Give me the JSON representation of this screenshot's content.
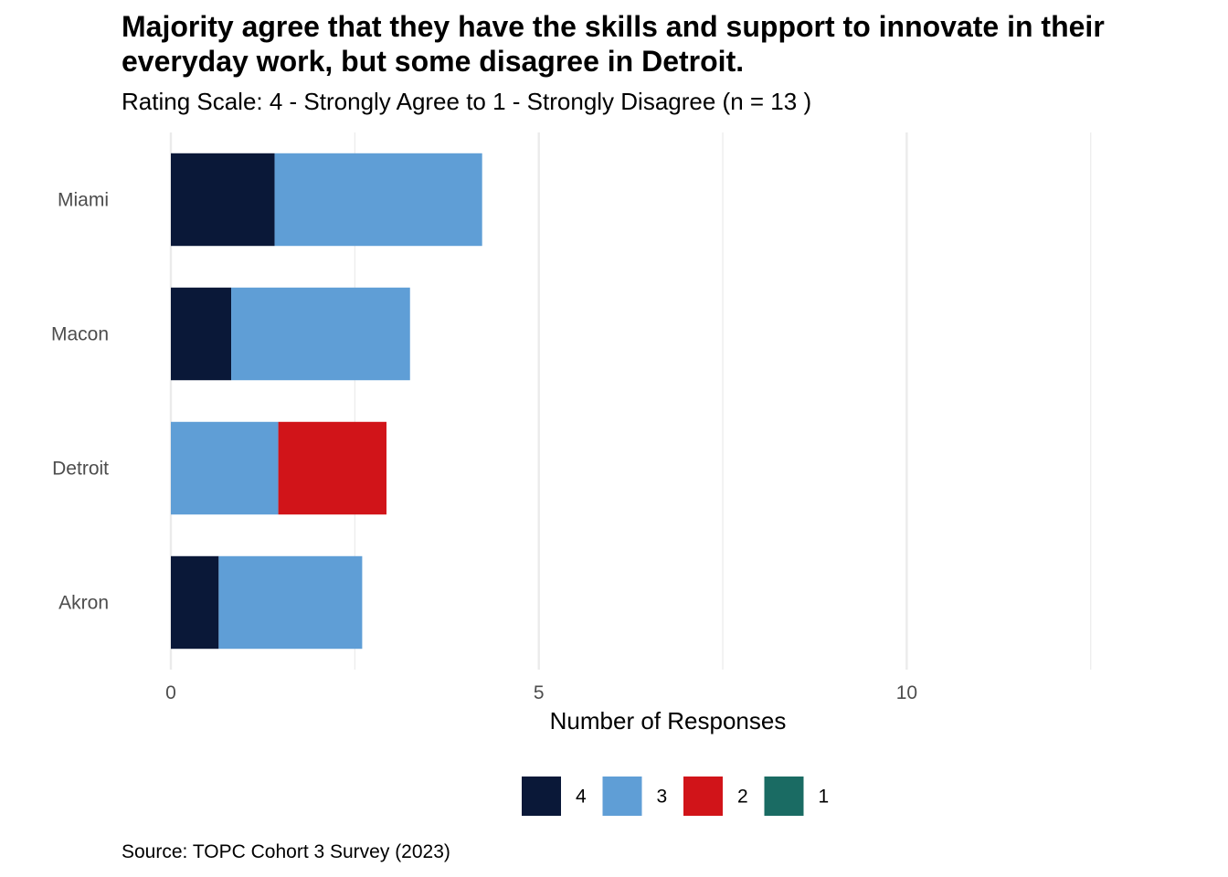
{
  "chart_data": {
    "type": "bar",
    "orientation": "horizontal",
    "stacked": true,
    "title": "Majority agree that they have the skills and support to innovate in their everyday work, but some disagree in Detroit.",
    "subtitle": "Rating Scale: 4 - Strongly Agree to 1 - Strongly Disagree (n = 13 )",
    "caption": "Source: TOPC Cohort 3 Survey (2023)",
    "xlabel": "Number of Responses",
    "ylabel": "",
    "xlim": [
      0,
      13
    ],
    "x_ticks": [
      0,
      5,
      10
    ],
    "grid": true,
    "legend_position": "bottom",
    "categories": [
      "Miami",
      "Macon",
      "Detroit",
      "Akron"
    ],
    "series": [
      {
        "name": "4",
        "color": "#0a1838",
        "values": [
          1.41,
          0.82,
          0,
          0.65
        ]
      },
      {
        "name": "3",
        "color": "#5f9ed6",
        "values": [
          2.82,
          2.43,
          1.46,
          1.95
        ]
      },
      {
        "name": "2",
        "color": "#d11419",
        "values": [
          0,
          0,
          1.47,
          0
        ]
      },
      {
        "name": "1",
        "color": "#1a6b63",
        "values": [
          0,
          0,
          0,
          0
        ]
      }
    ]
  }
}
